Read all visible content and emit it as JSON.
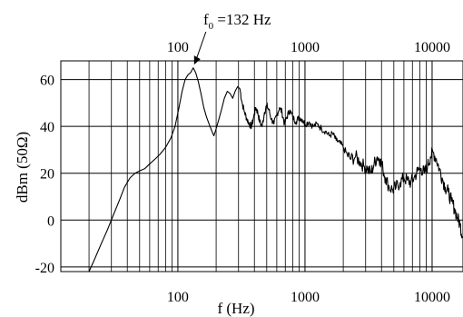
{
  "chart_data": {
    "type": "line",
    "x_scale": "log",
    "xlim": [
      12,
      17500
    ],
    "ylim": [
      -22,
      68
    ],
    "grid": true,
    "xlabel": "f (Hz)",
    "ylabel": "dBm (50Ω)",
    "x_ticks": [
      {
        "value": 100,
        "label": "100"
      },
      {
        "value": 1000,
        "label": "1000"
      },
      {
        "value": 10000,
        "label": "10000"
      }
    ],
    "y_ticks": [
      {
        "value": 60,
        "label": "60"
      },
      {
        "value": 40,
        "label": "40"
      },
      {
        "value": 20,
        "label": "20"
      },
      {
        "value": 0,
        "label": "0"
      },
      {
        "value": -20,
        "label": "-20"
      }
    ],
    "annotation": {
      "x": 132,
      "y": 66,
      "label_main": "f",
      "label_sub": "0",
      "label_rest": " =132 Hz"
    },
    "series": [
      {
        "values": [
          [
            20,
            -22
          ],
          [
            22,
            -17
          ],
          [
            25,
            -10
          ],
          [
            28,
            -4
          ],
          [
            31,
            2
          ],
          [
            35,
            9
          ],
          [
            38,
            14
          ],
          [
            42,
            18
          ],
          [
            46,
            20
          ],
          [
            50,
            21
          ],
          [
            55,
            22
          ],
          [
            60,
            24
          ],
          [
            66,
            26
          ],
          [
            72,
            28
          ],
          [
            80,
            31
          ],
          [
            88,
            35
          ],
          [
            95,
            40
          ],
          [
            102,
            48
          ],
          [
            108,
            55
          ],
          [
            114,
            60
          ],
          [
            120,
            62
          ],
          [
            126,
            63
          ],
          [
            132,
            65
          ],
          [
            138,
            63
          ],
          [
            145,
            59
          ],
          [
            152,
            54
          ],
          [
            160,
            48
          ],
          [
            168,
            44
          ],
          [
            176,
            41
          ],
          [
            185,
            38
          ],
          [
            192,
            36
          ],
          [
            200,
            39
          ],
          [
            210,
            43
          ],
          [
            220,
            47
          ],
          [
            232,
            52
          ],
          [
            245,
            55
          ],
          [
            258,
            54
          ],
          [
            270,
            52
          ],
          [
            282,
            55
          ],
          [
            295,
            57
          ],
          [
            308,
            56
          ],
          [
            320,
            50
          ],
          [
            335,
            46
          ],
          [
            350,
            43
          ],
          [
            365,
            41
          ],
          [
            380,
            40
          ],
          [
            395,
            44
          ],
          [
            410,
            48
          ],
          [
            425,
            46
          ],
          [
            440,
            42
          ],
          [
            460,
            40
          ],
          [
            480,
            46
          ],
          [
            500,
            49
          ],
          [
            520,
            47
          ],
          [
            545,
            43
          ],
          [
            570,
            41
          ],
          [
            600,
            45
          ],
          [
            630,
            48
          ],
          [
            660,
            46
          ],
          [
            690,
            41
          ],
          [
            720,
            44
          ],
          [
            760,
            47
          ],
          [
            800,
            44
          ],
          [
            850,
            42
          ],
          [
            900,
            44
          ],
          [
            950,
            43
          ],
          [
            1000,
            41
          ],
          [
            1080,
            42
          ],
          [
            1160,
            40
          ],
          [
            1250,
            41
          ],
          [
            1350,
            39
          ],
          [
            1450,
            38
          ],
          [
            1550,
            36
          ],
          [
            1650,
            37
          ],
          [
            1760,
            34
          ],
          [
            1880,
            33
          ],
          [
            2000,
            31
          ],
          [
            2150,
            28
          ],
          [
            2300,
            26
          ],
          [
            2500,
            27
          ],
          [
            2700,
            25
          ],
          [
            2900,
            23
          ],
          [
            3100,
            22
          ],
          [
            3300,
            20
          ],
          [
            3500,
            24
          ],
          [
            3700,
            27
          ],
          [
            3900,
            26
          ],
          [
            4100,
            22
          ],
          [
            4300,
            18
          ],
          [
            4600,
            14
          ],
          [
            4900,
            13
          ],
          [
            5200,
            14
          ],
          [
            5600,
            16
          ],
          [
            6000,
            18
          ],
          [
            6400,
            17
          ],
          [
            6800,
            16
          ],
          [
            7200,
            18
          ],
          [
            7700,
            21
          ],
          [
            8200,
            22
          ],
          [
            8700,
            20
          ],
          [
            9200,
            23
          ],
          [
            9700,
            27
          ],
          [
            10200,
            29
          ],
          [
            10800,
            26
          ],
          [
            11400,
            22
          ],
          [
            12000,
            18
          ],
          [
            12700,
            14
          ],
          [
            13400,
            12
          ],
          [
            14200,
            8
          ],
          [
            15000,
            5
          ],
          [
            15800,
            1
          ],
          [
            16600,
            -2
          ],
          [
            17400,
            -7
          ]
        ]
      }
    ]
  }
}
